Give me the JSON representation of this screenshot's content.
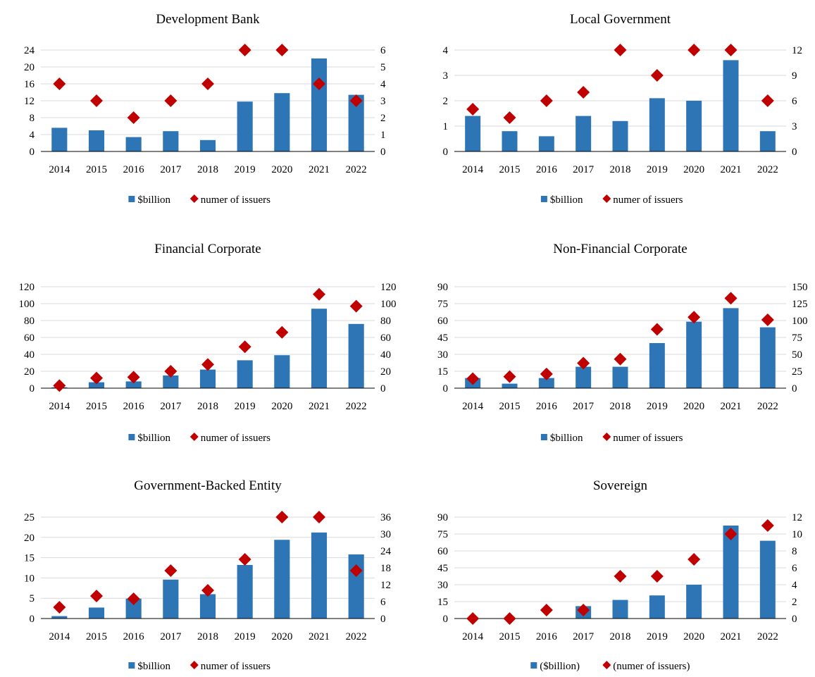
{
  "colors": {
    "bar": "#2E75B6",
    "marker": "#C00000",
    "axis": "#000000",
    "grid": "#D9D9D9"
  },
  "chart_data": [
    {
      "type": "bar",
      "title": "Development Bank",
      "categories": [
        "2014",
        "2015",
        "2016",
        "2017",
        "2018",
        "2019",
        "2020",
        "2021",
        "2022"
      ],
      "series": [
        {
          "name": "$billion",
          "type": "bar",
          "axis": "left",
          "values": [
            5.6,
            5.0,
            3.4,
            4.8,
            2.7,
            11.8,
            13.8,
            22.0,
            13.4
          ]
        },
        {
          "name": "numer of issuers",
          "type": "scatter",
          "marker": "diamond",
          "axis": "right",
          "values": [
            4,
            3,
            2,
            3,
            4,
            6,
            6,
            4,
            3
          ]
        }
      ],
      "ylim_left": [
        0,
        24
      ],
      "yticks_left": [
        0,
        4,
        8,
        12,
        16,
        20,
        24
      ],
      "ylim_right": [
        0,
        6
      ],
      "yticks_right": [
        0,
        1,
        2,
        3,
        4,
        5,
        6
      ],
      "grid": true,
      "legend": "bottom"
    },
    {
      "type": "bar",
      "title": "Local Government",
      "categories": [
        "2014",
        "2015",
        "2016",
        "2017",
        "2018",
        "2019",
        "2020",
        "2021",
        "2022"
      ],
      "series": [
        {
          "name": "$billion",
          "type": "bar",
          "axis": "left",
          "values": [
            1.4,
            0.8,
            0.6,
            1.4,
            1.2,
            2.1,
            2.0,
            3.6,
            0.8
          ]
        },
        {
          "name": "numer of issuers",
          "type": "scatter",
          "marker": "diamond",
          "axis": "right",
          "values": [
            5,
            4,
            6,
            7,
            12,
            9,
            12,
            12,
            6
          ]
        }
      ],
      "ylim_left": [
        0,
        4
      ],
      "yticks_left": [
        0,
        1,
        2,
        3,
        4
      ],
      "ylim_right": [
        0,
        12
      ],
      "yticks_right": [
        0,
        3,
        6,
        9,
        12
      ],
      "grid": true,
      "legend": "bottom"
    },
    {
      "type": "bar",
      "title": "Financial Corporate",
      "categories": [
        "2014",
        "2015",
        "2016",
        "2017",
        "2018",
        "2019",
        "2020",
        "2021",
        "2022"
      ],
      "series": [
        {
          "name": "$billion",
          "type": "bar",
          "axis": "left",
          "values": [
            1,
            7,
            8,
            15,
            22,
            33,
            39,
            94,
            76
          ]
        },
        {
          "name": "numer of issuers",
          "type": "scatter",
          "marker": "diamond",
          "axis": "right",
          "values": [
            3,
            12,
            13,
            20,
            28,
            49,
            66,
            111,
            97
          ]
        }
      ],
      "ylim_left": [
        0,
        120
      ],
      "yticks_left": [
        0,
        20,
        40,
        60,
        80,
        100,
        120
      ],
      "ylim_right": [
        0,
        120
      ],
      "yticks_right": [
        0,
        20,
        40,
        60,
        80,
        100,
        120
      ],
      "grid": true,
      "legend": "bottom"
    },
    {
      "type": "bar",
      "title": "Non-Financial Corporate",
      "categories": [
        "2014",
        "2015",
        "2016",
        "2017",
        "2018",
        "2019",
        "2020",
        "2021",
        "2022"
      ],
      "series": [
        {
          "name": "$billion",
          "type": "bar",
          "axis": "left",
          "values": [
            9,
            4,
            9,
            19,
            19,
            40,
            59,
            71,
            54
          ]
        },
        {
          "name": "numer of issuers",
          "type": "scatter",
          "marker": "diamond",
          "axis": "right",
          "values": [
            14,
            17,
            21,
            37,
            43,
            87,
            105,
            133,
            101
          ]
        }
      ],
      "ylim_left": [
        0,
        90
      ],
      "yticks_left": [
        0,
        15,
        30,
        45,
        60,
        75,
        90
      ],
      "ylim_right": [
        0,
        150
      ],
      "yticks_right": [
        0,
        25,
        50,
        75,
        100,
        125,
        150
      ],
      "grid": true,
      "legend": "bottom"
    },
    {
      "type": "bar",
      "title": "Government-Backed Entity",
      "categories": [
        "2014",
        "2015",
        "2016",
        "2017",
        "2018",
        "2019",
        "2020",
        "2021",
        "2022"
      ],
      "series": [
        {
          "name": "$billion",
          "type": "bar",
          "axis": "left",
          "values": [
            0.6,
            2.7,
            4.9,
            9.6,
            6.0,
            13.2,
            19.4,
            21.2,
            15.8
          ]
        },
        {
          "name": "numer of issuers",
          "type": "scatter",
          "marker": "diamond",
          "axis": "right",
          "values": [
            4,
            8,
            7,
            17,
            10,
            21,
            36,
            36,
            17
          ]
        }
      ],
      "ylim_left": [
        0,
        25
      ],
      "yticks_left": [
        0,
        5,
        10,
        15,
        20,
        25
      ],
      "ylim_right": [
        0,
        36
      ],
      "yticks_right": [
        0,
        6,
        12,
        18,
        24,
        30,
        36
      ],
      "grid": true,
      "legend": "bottom"
    },
    {
      "type": "bar",
      "title": "Sovereign",
      "categories": [
        "2014",
        "2015",
        "2016",
        "2017",
        "2018",
        "2019",
        "2020",
        "2021",
        "2022"
      ],
      "series": [
        {
          "name": "($billion)",
          "type": "bar",
          "axis": "left",
          "values": [
            0,
            0,
            0,
            11,
            16.5,
            20.5,
            30,
            82.5,
            69
          ]
        },
        {
          "name": "(numer of issuers)",
          "type": "scatter",
          "marker": "diamond",
          "axis": "right",
          "values": [
            0,
            0,
            1,
            1,
            5,
            5,
            7,
            10,
            11
          ]
        }
      ],
      "ylim_left": [
        0,
        90
      ],
      "yticks_left": [
        0,
        15,
        30,
        45,
        60,
        75,
        90
      ],
      "ylim_right": [
        0,
        12
      ],
      "yticks_right": [
        0,
        2,
        4,
        6,
        8,
        10,
        12
      ],
      "grid": true,
      "legend": "bottom"
    }
  ]
}
